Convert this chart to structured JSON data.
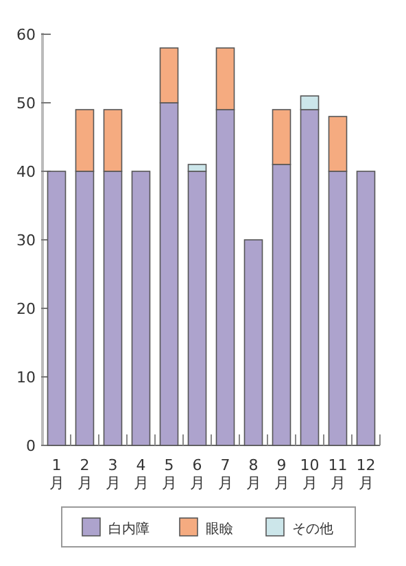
{
  "chart_data": {
    "type": "bar",
    "stacked": true,
    "categories": [
      "1月",
      "2月",
      "3月",
      "4月",
      "5月",
      "6月",
      "7月",
      "8月",
      "9月",
      "10月",
      "11月",
      "12月"
    ],
    "series": [
      {
        "name": "白内障",
        "color": "#ada3cd",
        "values": [
          40,
          40,
          40,
          40,
          50,
          40,
          49,
          30,
          41,
          49,
          40,
          40
        ]
      },
      {
        "name": "眼瞼",
        "color": "#f5ab80",
        "values": [
          0,
          9,
          9,
          0,
          8,
          0,
          9,
          0,
          8,
          0,
          8,
          0
        ]
      },
      {
        "name": "その他",
        "color": "#cce6ea",
        "values": [
          0,
          0,
          0,
          0,
          0,
          1,
          0,
          0,
          0,
          2,
          0,
          0
        ]
      }
    ],
    "ylim": [
      0,
      60
    ],
    "yticks": [
      0,
      10,
      20,
      30,
      40,
      50,
      60
    ],
    "grid": false,
    "legend": "bottom"
  }
}
